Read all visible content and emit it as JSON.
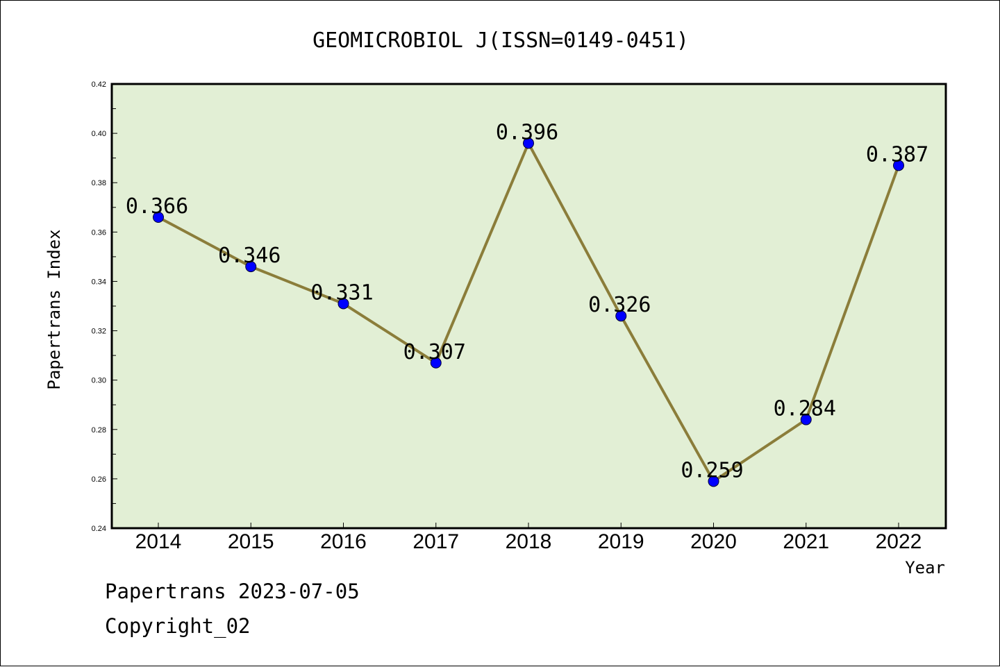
{
  "chart_data": {
    "type": "line",
    "title": "GEOMICROBIOL J(ISSN=0149-0451)",
    "xlabel": "Year",
    "ylabel": "Papertrans Index",
    "categories": [
      "2014",
      "2015",
      "2016",
      "2017",
      "2018",
      "2019",
      "2020",
      "2021",
      "2022"
    ],
    "values": [
      0.366,
      0.346,
      0.331,
      0.307,
      0.396,
      0.326,
      0.259,
      0.284,
      0.387
    ],
    "data_labels": [
      "0.366",
      "0.346",
      "0.331",
      "0.307",
      "0.396",
      "0.326",
      "0.259",
      "0.284",
      "0.387"
    ],
    "ylim": [
      0.24,
      0.42
    ],
    "yticks": [
      "0.24",
      "0.26",
      "0.28",
      "0.30",
      "0.32",
      "0.34",
      "0.36",
      "0.38",
      "0.40",
      "0.42"
    ],
    "grid": false,
    "colors": {
      "plot_background": "#e2efd5",
      "line": "#8b7d3a",
      "marker": "#0000ff",
      "frame": "#000000"
    }
  },
  "footer": {
    "line1": "Papertrans 2023-07-05",
    "line2": "Copyright_02"
  }
}
